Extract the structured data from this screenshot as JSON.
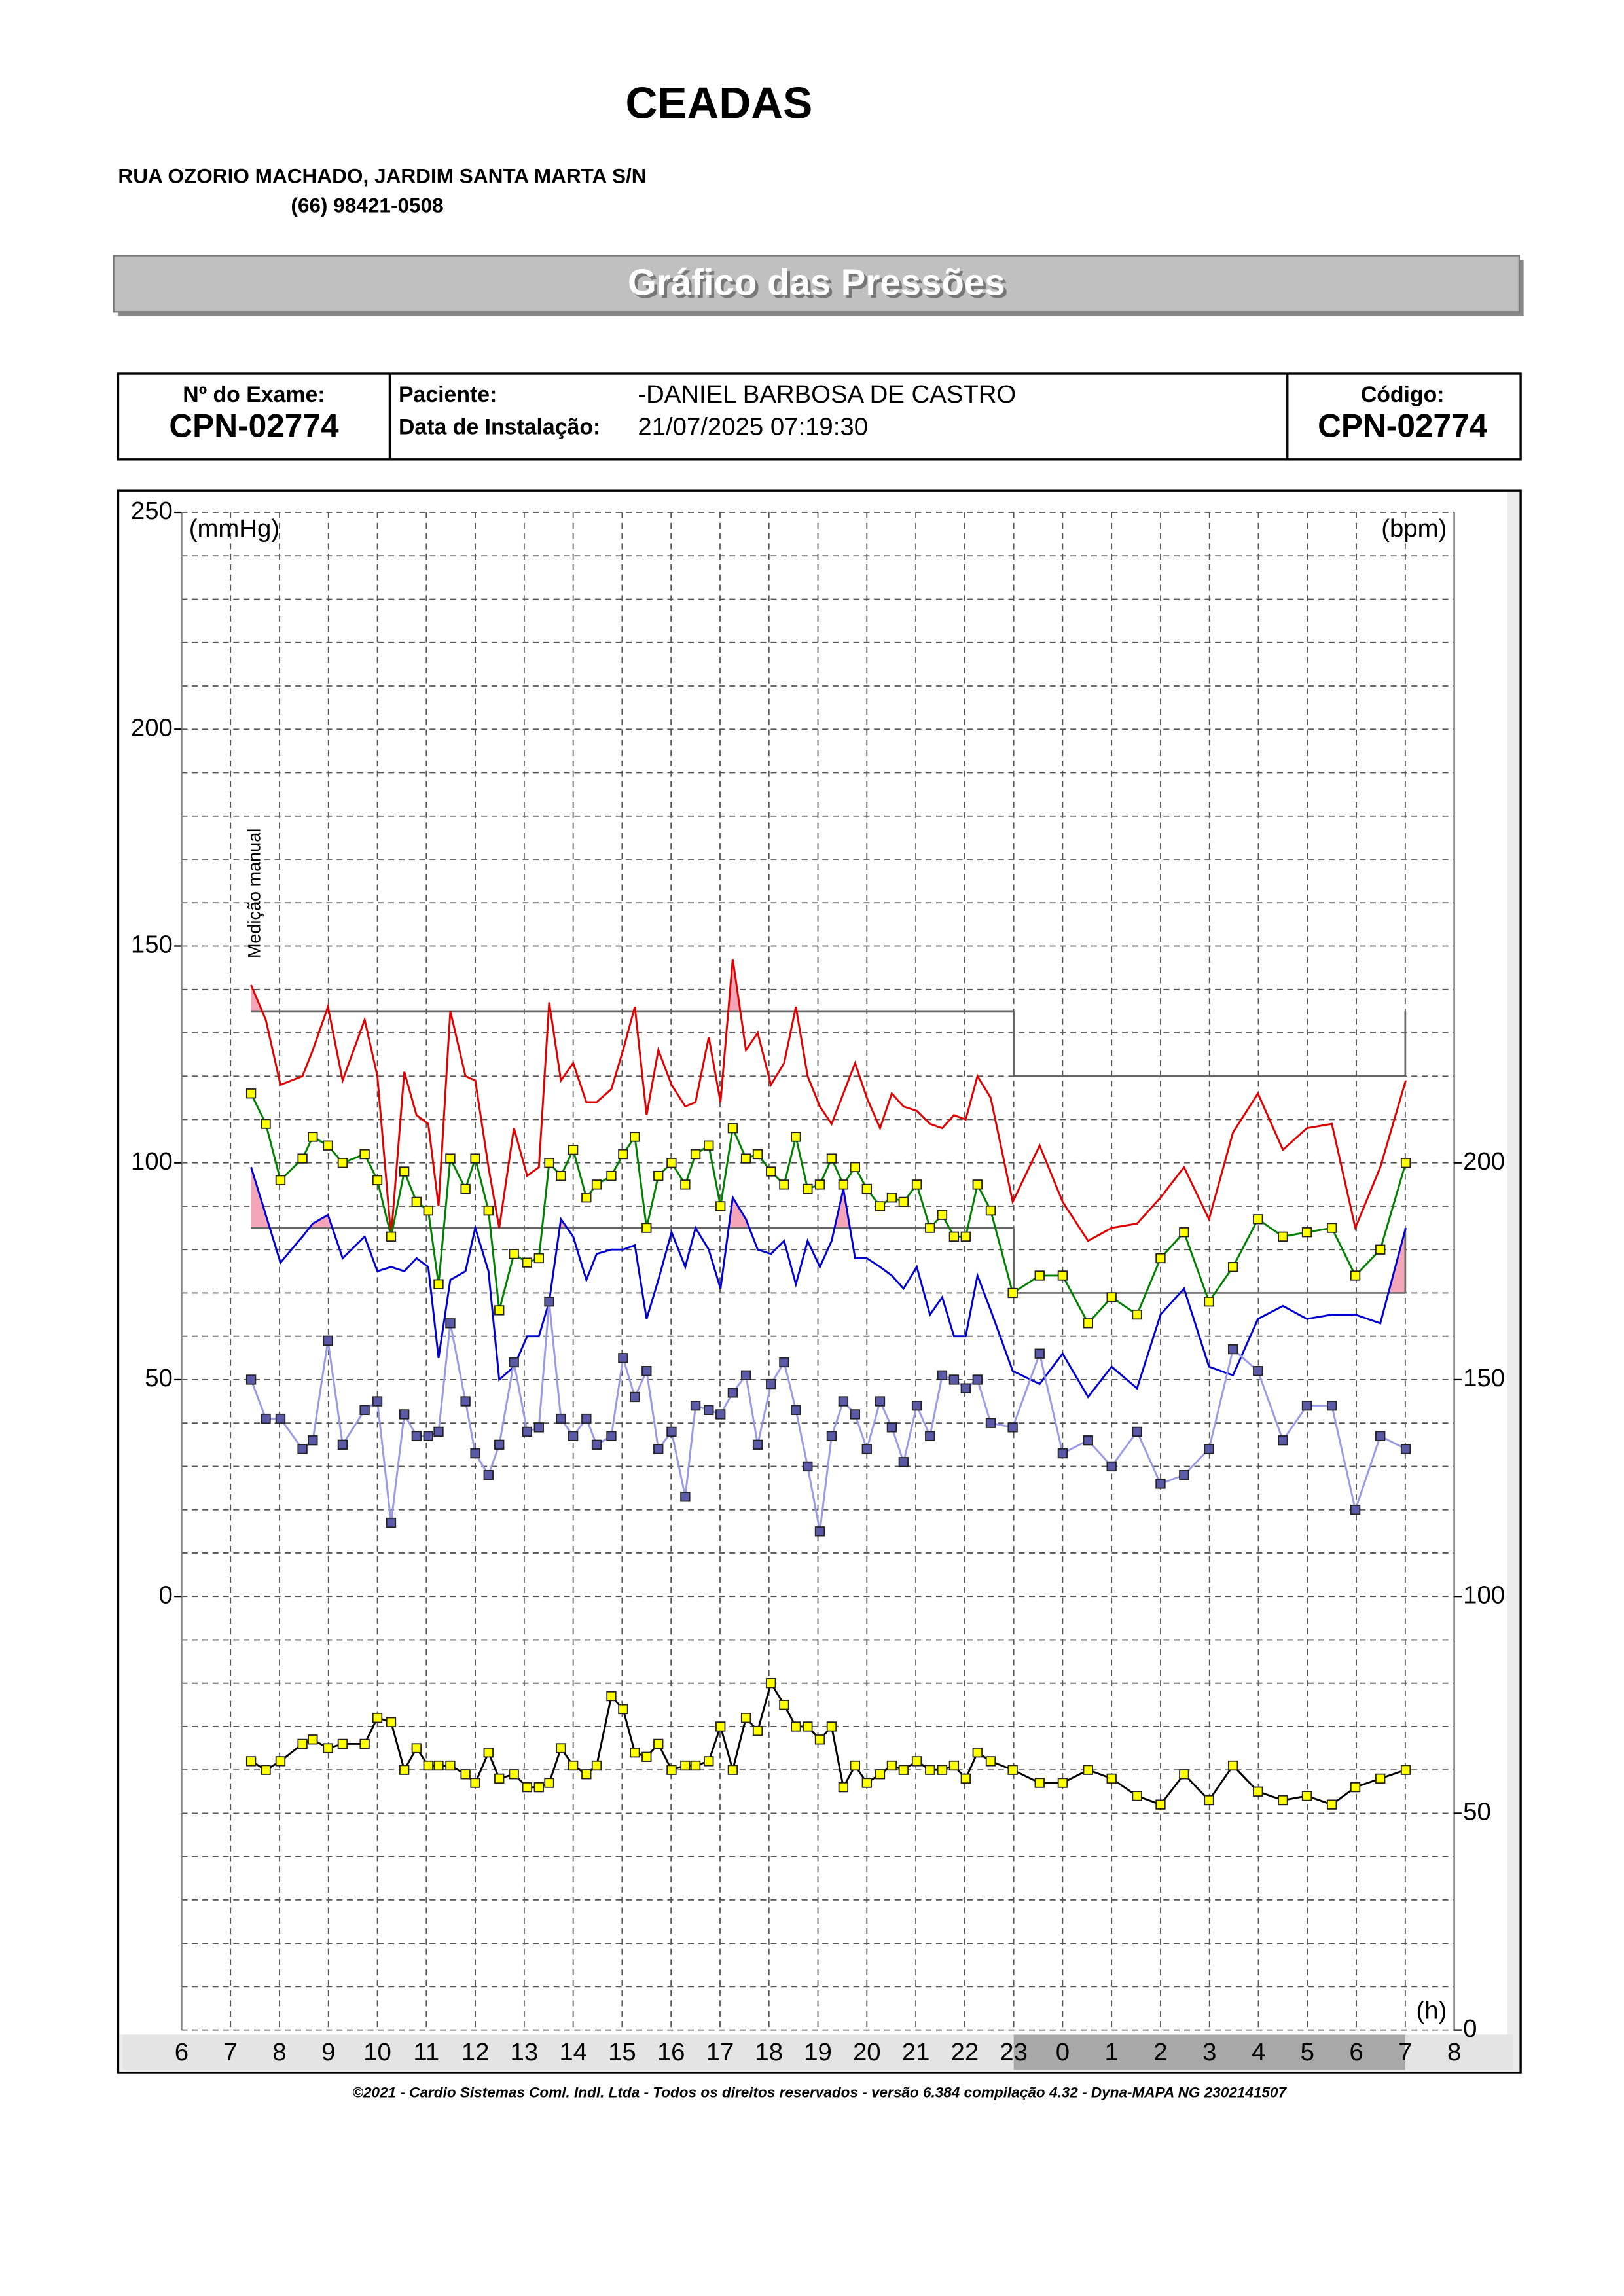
{
  "header": {
    "title": "CEADAS",
    "address": "RUA OZORIO MACHADO, JARDIM SANTA MARTA S/N",
    "phone": "(66) 98421-0508",
    "banner": "Gráfico das Pressões"
  },
  "exam": {
    "label": "Nº do Exame:",
    "value": "CPN-02774"
  },
  "patient": {
    "name_label": "Paciente:",
    "name": "-DANIEL BARBOSA DE  CASTRO",
    "date_label": "Data de Instalação:",
    "date": "21/07/2025 07:19:30"
  },
  "code": {
    "label": "Código:",
    "value": "CPN-02774"
  },
  "footer": "©2021 - Cardio Sistemas Coml. Indl. Ltda - Todos os direitos reservados - versão 6.384 compilação 4.32 - Dyna-MAPA NG 2302141507",
  "chart_data": {
    "type": "line",
    "y_axis_label": "(mmHg)",
    "y2_axis_label": "(bpm)",
    "x_axis_label": "(h)",
    "annotation": "Medição manual",
    "xlim": [
      6,
      32
    ],
    "xticks": [
      6,
      7,
      8,
      9,
      10,
      11,
      12,
      13,
      14,
      15,
      16,
      17,
      18,
      19,
      20,
      21,
      22,
      23,
      {
        "value": 24,
        "label": "0"
      },
      {
        "value": 25,
        "label": "1"
      },
      {
        "value": 26,
        "label": "2"
      },
      {
        "value": 27,
        "label": "3"
      },
      {
        "value": 28,
        "label": "4"
      },
      {
        "value": 29,
        "label": "5"
      },
      {
        "value": 30,
        "label": "6"
      },
      {
        "value": 31,
        "label": "7"
      },
      {
        "value": 32,
        "label": "8"
      }
    ],
    "ylim": [
      -100,
      250
    ],
    "yticks": [
      0,
      50,
      100,
      150,
      200,
      250
    ],
    "y2lim": [
      0,
      350
    ],
    "y2ticks": [
      0,
      50,
      100,
      150,
      200
    ],
    "grid": true,
    "minor_step": 10,
    "night": [
      23,
      31
    ],
    "limits": [
      {
        "x": [
          7.42,
          23
        ],
        "sys": 135,
        "dia": 85
      },
      {
        "x": [
          23,
          31
        ],
        "sys": 120,
        "dia": 70
      }
    ],
    "x": [
      7.42,
      7.72,
      8.02,
      8.47,
      8.68,
      8.99,
      9.29,
      9.74,
      10.0,
      10.28,
      10.55,
      10.8,
      11.04,
      11.25,
      11.49,
      11.8,
      12.0,
      12.27,
      12.49,
      12.79,
      13.06,
      13.3,
      13.51,
      13.75,
      14.0,
      14.27,
      14.48,
      14.78,
      15.02,
      15.26,
      15.5,
      15.74,
      16.01,
      16.29,
      16.5,
      16.77,
      17.01,
      17.26,
      17.53,
      17.77,
      18.04,
      18.31,
      18.55,
      18.79,
      19.04,
      19.28,
      19.52,
      19.76,
      20.0,
      20.27,
      20.51,
      20.75,
      21.02,
      21.29,
      21.54,
      21.78,
      22.02,
      22.26,
      22.53,
      22.98,
      23.53,
      24.0,
      24.52,
      25.0,
      25.52,
      26.0,
      26.48,
      26.99,
      27.48,
      27.99,
      28.5,
      28.99,
      29.5,
      29.98,
      30.49,
      31.01
    ],
    "series": [
      {
        "color": "#e00000",
        "limit": "sys",
        "values": [
          141,
          133,
          118,
          120,
          126,
          136,
          119,
          133,
          120,
          83,
          121,
          111,
          109,
          90,
          135,
          120,
          119,
          99,
          85,
          108,
          97,
          99,
          137,
          119,
          123,
          114,
          114,
          117,
          126,
          136,
          111,
          126,
          118,
          113,
          114,
          129,
          114,
          147,
          126,
          130,
          118,
          123,
          136,
          120,
          113,
          109,
          116,
          123,
          115,
          108,
          116,
          113,
          112,
          109,
          108,
          111,
          110,
          120,
          115,
          91,
          104,
          91,
          82,
          85,
          86,
          92,
          99,
          87,
          107,
          116,
          103,
          108,
          109,
          85,
          99,
          119
        ]
      },
      {
        "color": "#0000d0",
        "limit": "dia",
        "values": [
          99,
          88,
          77,
          83,
          86,
          88,
          78,
          83,
          75,
          76,
          75,
          78,
          76,
          55,
          73,
          75,
          85,
          75,
          50,
          53,
          60,
          60,
          68,
          87,
          83,
          73,
          79,
          80,
          80,
          81,
          64,
          73,
          84,
          76,
          85,
          80,
          71,
          92,
          87,
          80,
          79,
          82,
          72,
          82,
          76,
          82,
          94,
          78,
          78,
          76,
          74,
          71,
          76,
          65,
          69,
          60,
          60,
          74,
          66,
          52,
          49,
          56,
          46,
          53,
          48,
          65,
          71,
          53,
          51,
          64,
          67,
          64,
          65,
          65,
          63,
          85
        ]
      },
      {
        "color": "#008000",
        "marker_color": "#ffff00",
        "values": [
          116,
          109,
          96,
          101,
          106,
          104,
          100,
          102,
          96,
          83,
          98,
          91,
          89,
          72,
          101,
          94,
          101,
          89,
          66,
          79,
          77,
          78,
          100,
          97,
          103,
          92,
          95,
          97,
          102,
          106,
          85,
          97,
          100,
          95,
          102,
          104,
          90,
          108,
          101,
          102,
          98,
          95,
          106,
          94,
          95,
          101,
          95,
          99,
          94,
          90,
          92,
          91,
          95,
          85,
          88,
          83,
          83,
          95,
          89,
          70,
          74,
          74,
          63,
          69,
          65,
          78,
          84,
          68,
          76,
          87,
          83,
          84,
          85,
          74,
          80,
          100
        ]
      },
      {
        "color": "#9a9ae6",
        "marker_color": "#5a5aa8",
        "values": [
          50,
          41,
          41,
          34,
          36,
          59,
          35,
          43,
          45,
          17,
          42,
          37,
          37,
          38,
          63,
          45,
          33,
          28,
          35,
          54,
          38,
          39,
          68,
          41,
          37,
          41,
          35,
          37,
          55,
          46,
          52,
          34,
          38,
          23,
          44,
          43,
          42,
          47,
          51,
          35,
          49,
          54,
          43,
          30,
          15,
          37,
          45,
          42,
          34,
          45,
          39,
          31,
          44,
          37,
          51,
          50,
          48,
          50,
          40,
          39,
          56,
          33,
          36,
          30,
          38,
          26,
          28,
          34,
          57,
          52,
          36,
          44,
          44,
          20,
          37,
          34
        ]
      },
      {
        "color": "#000000",
        "marker_color": "#ffff00",
        "axis": "y2",
        "values": [
          62,
          60,
          62,
          66,
          67,
          65,
          66,
          66,
          72,
          71,
          60,
          65,
          61,
          61,
          61,
          59,
          57,
          64,
          58,
          59,
          56,
          56,
          57,
          65,
          61,
          59,
          61,
          77,
          74,
          64,
          63,
          66,
          60,
          61,
          61,
          62,
          70,
          60,
          72,
          69,
          80,
          75,
          70,
          70,
          67,
          70,
          56,
          61,
          57,
          59,
          61,
          60,
          62,
          60,
          60,
          61,
          58,
          64,
          62,
          60,
          57,
          57,
          60,
          58,
          54,
          52,
          59,
          53,
          61,
          55,
          53,
          54,
          52,
          56,
          58,
          60
        ]
      }
    ]
  }
}
